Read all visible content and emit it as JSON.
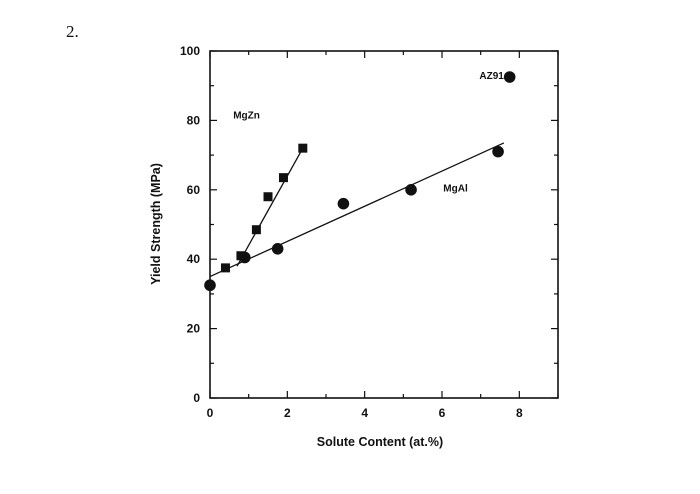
{
  "question_number": "2.",
  "chart_data": {
    "type": "scatter",
    "title": "",
    "xlabel": "Solute Content (at.%)",
    "ylabel": "Yield Strength (MPa)",
    "xlim": [
      0,
      9
    ],
    "ylim": [
      0,
      100
    ],
    "x_ticks": [
      "0",
      "2",
      "4",
      "6",
      "8"
    ],
    "y_ticks": [
      "0",
      "20",
      "40",
      "60",
      "80",
      "100"
    ],
    "grid": false,
    "series": [
      {
        "name": "MgZn",
        "marker": "square",
        "color": "#111111",
        "points": [
          [
            0.4,
            37.5
          ],
          [
            0.8,
            41
          ],
          [
            1.2,
            48.5
          ],
          [
            1.5,
            58
          ],
          [
            1.9,
            63.5
          ],
          [
            2.4,
            72
          ]
        ],
        "fit": [
          [
            0.7,
            38
          ],
          [
            2.4,
            72
          ]
        ]
      },
      {
        "name": "MgAl",
        "marker": "circle",
        "color": "#111111",
        "points": [
          [
            0,
            32.5
          ],
          [
            0.9,
            40.5
          ],
          [
            1.75,
            43
          ],
          [
            3.45,
            56
          ],
          [
            5.2,
            60
          ],
          [
            7.45,
            71
          ]
        ],
        "fit": [
          [
            0,
            35
          ],
          [
            7.6,
            73.5
          ]
        ]
      },
      {
        "name": "AZ91",
        "marker": "circle",
        "color": "#111111",
        "points": [
          [
            7.75,
            92.5
          ]
        ]
      }
    ]
  }
}
